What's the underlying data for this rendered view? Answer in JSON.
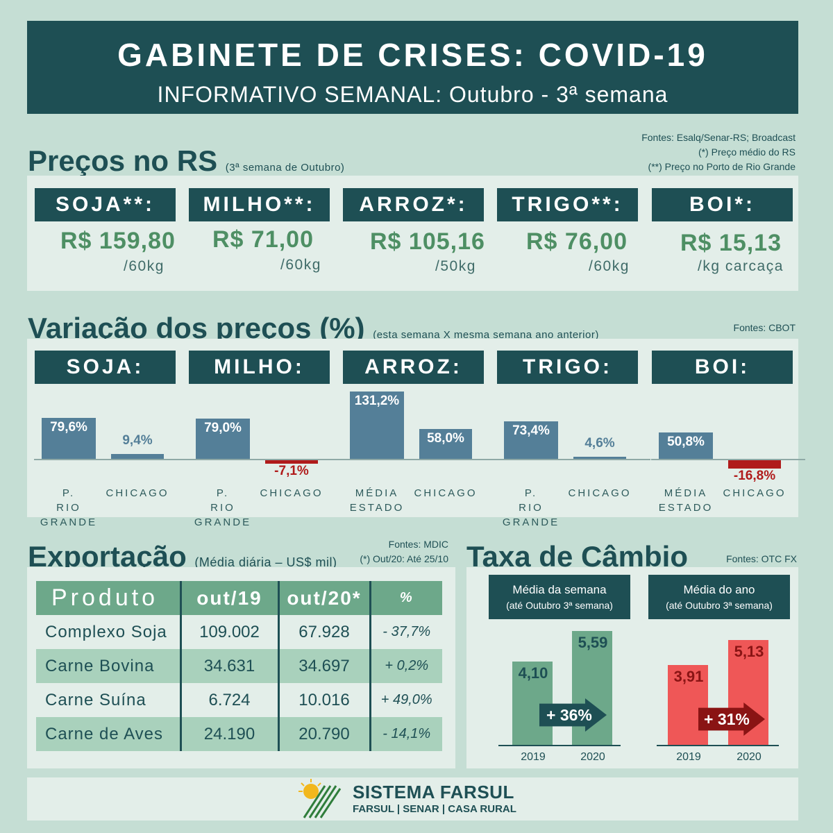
{
  "header": {
    "title": "GABINETE DE CRISES: COVID-19",
    "subtitle": "INFORMATIVO SEMANAL: Outubro - 3ª semana"
  },
  "precos": {
    "heading": "Preços no RS",
    "note": "(3ª semana de Outubro)",
    "sources": [
      "Fontes: Esalq/Senar-RS; Broadcast",
      "(*) Preço médio do RS",
      "(**) Preço no Porto de Rio Grande"
    ],
    "items": [
      {
        "label": "SOJA**:",
        "price": "R$ 159,80",
        "unit": "/60kg"
      },
      {
        "label": "MILHO**:",
        "price": "R$ 71,00",
        "unit": "/60kg"
      },
      {
        "label": "ARROZ*:",
        "price": "R$ 105,16",
        "unit": "/50kg"
      },
      {
        "label": "TRIGO**:",
        "price": "R$ 76,00",
        "unit": "/60kg"
      },
      {
        "label": "BOI*:",
        "price": "R$ 15,13",
        "unit": "/kg carcaça"
      }
    ]
  },
  "variacao": {
    "heading": "Variação dos preços (%)",
    "note": "(esta semana X mesma semana ano anterior)",
    "source": "Fontes: CBOT",
    "labels": [
      "SOJA:",
      "MILHO:",
      "ARROZ:",
      "TRIGO:",
      "BOI:"
    ]
  },
  "exportacao": {
    "heading": "Exportação",
    "note": "(Média diária – US$ mil)",
    "sources": [
      "Fontes: MDIC",
      "(*) Out/20: Até 25/10"
    ],
    "columns": [
      "Produto",
      "out/19",
      "out/20*",
      "%"
    ],
    "rows": [
      [
        "Complexo Soja",
        "109.002",
        "67.928",
        "- 37,7%"
      ],
      [
        "Carne Bovina",
        "34.631",
        "34.697",
        "+ 0,2%"
      ],
      [
        "Carne Suína",
        "6.724",
        "10.016",
        "+ 49,0%"
      ],
      [
        "Carne de Aves",
        "24.190",
        "20.790",
        "- 14,1%"
      ]
    ]
  },
  "cambio": {
    "heading": "Taxa de Câmbio",
    "source": "Fontes: OTC FX",
    "semana": {
      "label": "Média da semana",
      "sublabel": "(até Outubro  3ª semana)",
      "change": "+ 36%"
    },
    "ano": {
      "label": "Média do ano",
      "sublabel": "(até Outubro  3ª semana)",
      "change": "+ 31%"
    }
  },
  "footer": {
    "brand": "SISTEMA FARSUL",
    "sub": "FARSUL | SENAR | CASA RURAL"
  },
  "colors": {
    "dark_teal": "#1e4f54",
    "price_green": "#4e8f64",
    "bar_blue": "#547f98",
    "bar_red": "#b01b1b",
    "cambio_green": "#6da88a",
    "cambio_red": "#ef5757"
  },
  "chart_data": [
    {
      "type": "bar",
      "title": "SOJA:",
      "categories": [
        "P. RIO GRANDE",
        "CHICAGO"
      ],
      "values": [
        79.6,
        9.4
      ],
      "labels": [
        "79,6%",
        "9,4%"
      ]
    },
    {
      "type": "bar",
      "title": "MILHO:",
      "categories": [
        "P. RIO GRANDE",
        "CHICAGO"
      ],
      "values": [
        79.0,
        -7.1
      ],
      "labels": [
        "79,0%",
        "-7,1%"
      ]
    },
    {
      "type": "bar",
      "title": "ARROZ:",
      "categories": [
        "MÉDIA ESTADO",
        "CHICAGO"
      ],
      "values": [
        131.2,
        58.0
      ],
      "labels": [
        "131,2%",
        "58,0%"
      ]
    },
    {
      "type": "bar",
      "title": "TRIGO:",
      "categories": [
        "P. RIO GRANDE",
        "CHICAGO"
      ],
      "values": [
        73.4,
        4.6
      ],
      "labels": [
        "73,4%",
        "4,6%"
      ]
    },
    {
      "type": "bar",
      "title": "BOI:",
      "categories": [
        "MÉDIA ESTADO",
        "CHICAGO"
      ],
      "values": [
        50.8,
        -16.8
      ],
      "labels": [
        "50,8%",
        "-16,8%"
      ]
    },
    {
      "type": "bar",
      "title": "Média da semana",
      "categories": [
        "2019",
        "2020"
      ],
      "values": [
        4.1,
        5.59
      ],
      "labels": [
        "4,10",
        "5,59"
      ]
    },
    {
      "type": "bar",
      "title": "Média do ano",
      "categories": [
        "2019",
        "2020"
      ],
      "values": [
        3.91,
        5.13
      ],
      "labels": [
        "3,91",
        "5,13"
      ]
    }
  ]
}
